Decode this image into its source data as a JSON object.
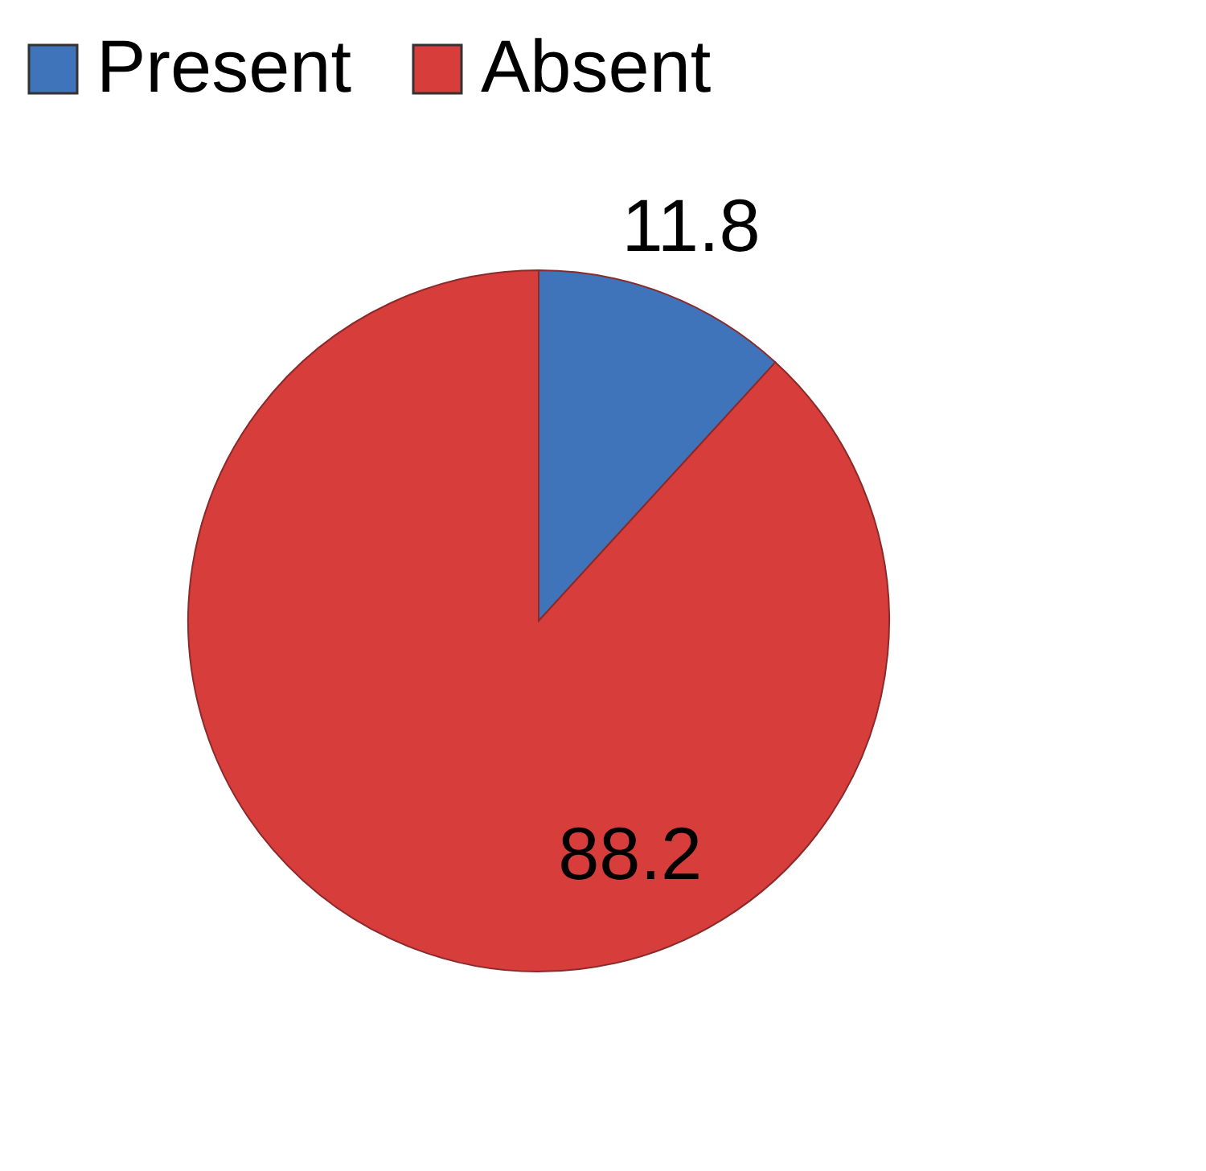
{
  "chart_data": {
    "type": "pie",
    "categories": [
      "Present",
      "Absent"
    ],
    "values": [
      11.8,
      88.2
    ],
    "colors": [
      "#3f74ba",
      "#d63d3b"
    ],
    "data_labels": true,
    "legend": "top"
  }
}
